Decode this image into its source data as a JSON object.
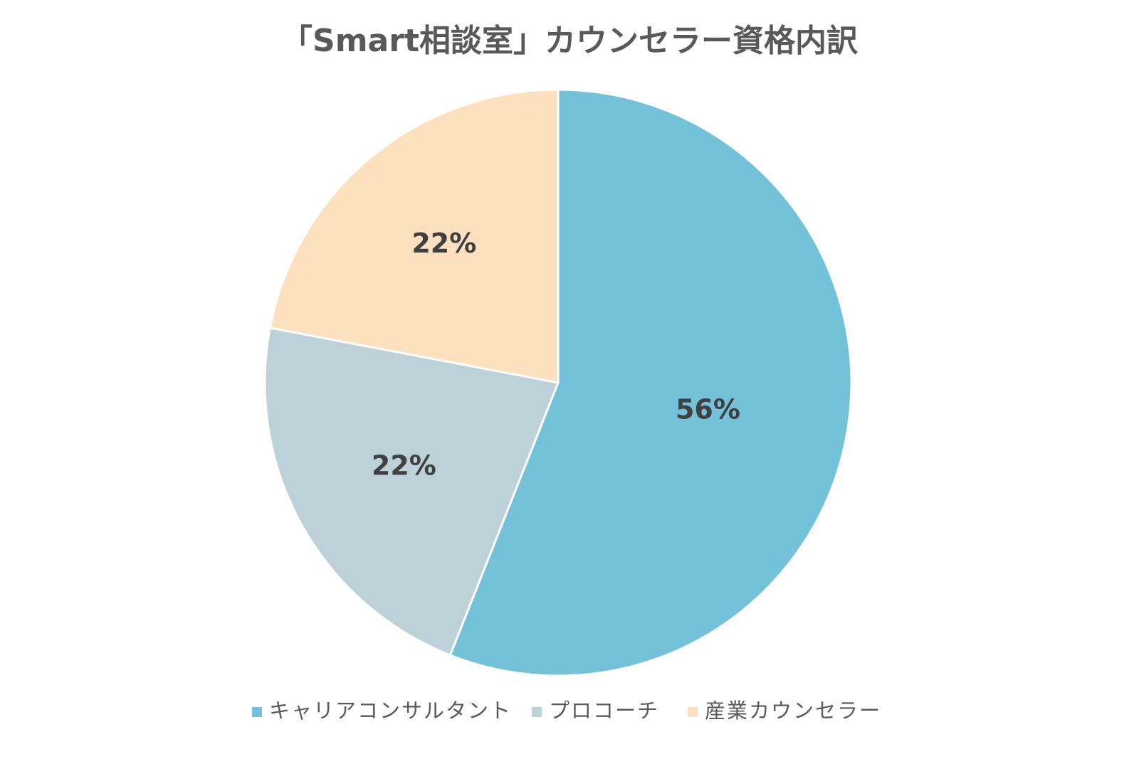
{
  "chart_data": {
    "type": "pie",
    "title": "「Smart相談室」カウンセラー資格内訳",
    "categories": [
      "キャリアコンサルタント",
      "プロコーチ",
      "産業カウンセラー"
    ],
    "values": [
      56,
      22,
      22
    ],
    "labels": [
      "56%",
      "22%",
      "22%"
    ],
    "colors": [
      "#74c1da",
      "#bdd1d8",
      "#fde0bd"
    ],
    "start_angle_deg": 0,
    "direction": "clockwise",
    "legend_position": "bottom"
  }
}
